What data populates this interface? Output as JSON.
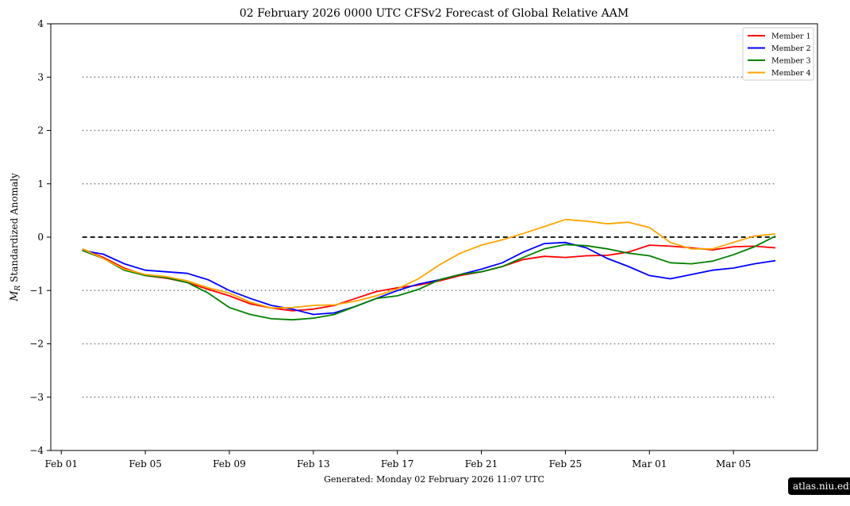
{
  "chart_data": {
    "type": "line",
    "title": "02  February  2026 0000 UTC   CFSv2 Forecast of Global Relative AAM",
    "xlabel": "",
    "ylabel": "Standardized Anomaly",
    "ylabel_symbol": "M",
    "ylabel_subscript": "R",
    "footer": "Generated: Monday  02  February  2026  11:07 UTC",
    "ylim": [
      -4,
      4
    ],
    "yticks": [
      -4,
      -3,
      -2,
      -1,
      0,
      1,
      2,
      3,
      4
    ],
    "ytick_labels": [
      "−4",
      "−3",
      "−2",
      "−1",
      "0",
      "1",
      "2",
      "3",
      "4"
    ],
    "xticks": [
      "2026-02-01",
      "2026-02-05",
      "2026-02-09",
      "2026-02-13",
      "2026-02-17",
      "2026-02-21",
      "2026-02-25",
      "2026-03-01",
      "2026-03-05"
    ],
    "xtick_labels": [
      "Feb 01",
      "Feb 05",
      "Feb 09",
      "Feb 13",
      "Feb 17",
      "Feb 21",
      "Feb 25",
      "Mar 01",
      "Mar 05"
    ],
    "xlim": [
      "2026-01-31T12:00",
      "2026-03-09T00:00"
    ],
    "reference_lines": {
      "zero": {
        "value": 0,
        "style": "dashed",
        "color": "#000000"
      },
      "dotted": {
        "values": [
          3,
          2,
          1,
          -1,
          -2,
          -3
        ],
        "style": "dotted",
        "color": "#808080",
        "from": "2026-02-02T00:00",
        "to": "2026-03-07T00:00"
      }
    },
    "legend_position": "top-right",
    "grid": false,
    "series": [
      {
        "name": "Member 1",
        "color": "#ff0000",
        "x": [
          "2026-02-02T00:00",
          "2026-02-03T00:00",
          "2026-02-04T00:00",
          "2026-02-05T00:00",
          "2026-02-06T00:00",
          "2026-02-07T00:00",
          "2026-02-08T00:00",
          "2026-02-09T00:00",
          "2026-02-10T00:00",
          "2026-02-11T00:00",
          "2026-02-12T00:00",
          "2026-02-13T00:00",
          "2026-02-14T00:00",
          "2026-02-15T00:00",
          "2026-02-16T00:00",
          "2026-02-17T00:00",
          "2026-02-18T00:00",
          "2026-02-19T00:00",
          "2026-02-20T00:00",
          "2026-02-21T00:00",
          "2026-02-22T00:00",
          "2026-02-23T00:00",
          "2026-02-24T00:00",
          "2026-02-25T00:00",
          "2026-02-26T00:00",
          "2026-02-27T00:00",
          "2026-02-28T00:00",
          "2026-03-01T00:00",
          "2026-03-02T00:00",
          "2026-03-03T00:00",
          "2026-03-04T00:00",
          "2026-03-05T00:00",
          "2026-03-06T00:00",
          "2026-03-07T00:00"
        ],
        "values": [
          -0.22,
          -0.38,
          -0.58,
          -0.72,
          -0.77,
          -0.85,
          -0.98,
          -1.1,
          -1.25,
          -1.33,
          -1.38,
          -1.35,
          -1.28,
          -1.15,
          -1.02,
          -0.95,
          -0.9,
          -0.82,
          -0.72,
          -0.65,
          -0.55,
          -0.42,
          -0.36,
          -0.38,
          -0.35,
          -0.34,
          -0.28,
          -0.15,
          -0.17,
          -0.2,
          -0.24,
          -0.18,
          -0.17,
          -0.2
        ]
      },
      {
        "name": "Member 2",
        "color": "#0000ff",
        "x": [
          "2026-02-02T00:00",
          "2026-02-03T00:00",
          "2026-02-04T00:00",
          "2026-02-05T00:00",
          "2026-02-06T00:00",
          "2026-02-07T00:00",
          "2026-02-08T00:00",
          "2026-02-09T00:00",
          "2026-02-10T00:00",
          "2026-02-11T00:00",
          "2026-02-12T00:00",
          "2026-02-13T00:00",
          "2026-02-14T00:00",
          "2026-02-15T00:00",
          "2026-02-16T00:00",
          "2026-02-17T00:00",
          "2026-02-18T00:00",
          "2026-02-19T00:00",
          "2026-02-20T00:00",
          "2026-02-21T00:00",
          "2026-02-22T00:00",
          "2026-02-23T00:00",
          "2026-02-24T00:00",
          "2026-02-25T00:00",
          "2026-02-26T00:00",
          "2026-02-27T00:00",
          "2026-02-28T00:00",
          "2026-03-01T00:00",
          "2026-03-02T00:00",
          "2026-03-03T00:00",
          "2026-03-04T00:00",
          "2026-03-05T00:00",
          "2026-03-06T00:00",
          "2026-03-07T00:00"
        ],
        "values": [
          -0.25,
          -0.32,
          -0.5,
          -0.62,
          -0.65,
          -0.68,
          -0.8,
          -1.0,
          -1.15,
          -1.28,
          -1.35,
          -1.45,
          -1.42,
          -1.3,
          -1.15,
          -1.0,
          -0.88,
          -0.8,
          -0.7,
          -0.6,
          -0.48,
          -0.28,
          -0.12,
          -0.1,
          -0.2,
          -0.4,
          -0.55,
          -0.72,
          -0.78,
          -0.7,
          -0.62,
          -0.58,
          -0.5,
          -0.44
        ]
      },
      {
        "name": "Member 3",
        "color": "#008000",
        "x": [
          "2026-02-02T00:00",
          "2026-02-03T00:00",
          "2026-02-04T00:00",
          "2026-02-05T00:00",
          "2026-02-06T00:00",
          "2026-02-07T00:00",
          "2026-02-08T00:00",
          "2026-02-09T00:00",
          "2026-02-10T00:00",
          "2026-02-11T00:00",
          "2026-02-12T00:00",
          "2026-02-13T00:00",
          "2026-02-14T00:00",
          "2026-02-15T00:00",
          "2026-02-16T00:00",
          "2026-02-17T00:00",
          "2026-02-18T00:00",
          "2026-02-19T00:00",
          "2026-02-20T00:00",
          "2026-02-21T00:00",
          "2026-02-22T00:00",
          "2026-02-23T00:00",
          "2026-02-24T00:00",
          "2026-02-25T00:00",
          "2026-02-26T00:00",
          "2026-02-27T00:00",
          "2026-02-28T00:00",
          "2026-03-01T00:00",
          "2026-03-02T00:00",
          "2026-03-03T00:00",
          "2026-03-04T00:00",
          "2026-03-05T00:00",
          "2026-03-06T00:00",
          "2026-03-07T00:00"
        ],
        "values": [
          -0.25,
          -0.4,
          -0.62,
          -0.72,
          -0.76,
          -0.85,
          -1.05,
          -1.32,
          -1.45,
          -1.53,
          -1.55,
          -1.52,
          -1.45,
          -1.3,
          -1.15,
          -1.1,
          -0.98,
          -0.8,
          -0.7,
          -0.65,
          -0.55,
          -0.38,
          -0.22,
          -0.14,
          -0.16,
          -0.22,
          -0.3,
          -0.35,
          -0.48,
          -0.5,
          -0.45,
          -0.33,
          -0.18,
          0.02
        ]
      },
      {
        "name": "Member 4",
        "color": "#ffa500",
        "x": [
          "2026-02-02T00:00",
          "2026-02-03T00:00",
          "2026-02-04T00:00",
          "2026-02-05T00:00",
          "2026-02-06T00:00",
          "2026-02-07T00:00",
          "2026-02-08T00:00",
          "2026-02-09T00:00",
          "2026-02-10T00:00",
          "2026-02-11T00:00",
          "2026-02-12T00:00",
          "2026-02-13T00:00",
          "2026-02-14T00:00",
          "2026-02-15T00:00",
          "2026-02-16T00:00",
          "2026-02-17T00:00",
          "2026-02-18T00:00",
          "2026-02-19T00:00",
          "2026-02-20T00:00",
          "2026-02-21T00:00",
          "2026-02-22T00:00",
          "2026-02-23T00:00",
          "2026-02-24T00:00",
          "2026-02-25T00:00",
          "2026-02-26T00:00",
          "2026-02-27T00:00",
          "2026-02-28T00:00",
          "2026-03-01T00:00",
          "2026-03-02T00:00",
          "2026-03-03T00:00",
          "2026-03-04T00:00",
          "2026-03-05T00:00",
          "2026-03-06T00:00",
          "2026-03-07T00:00"
        ],
        "values": [
          -0.22,
          -0.4,
          -0.6,
          -0.7,
          -0.74,
          -0.82,
          -0.95,
          -1.05,
          -1.22,
          -1.33,
          -1.32,
          -1.28,
          -1.27,
          -1.2,
          -1.1,
          -0.97,
          -0.78,
          -0.52,
          -0.3,
          -0.15,
          -0.05,
          0.07,
          0.2,
          0.33,
          0.3,
          0.25,
          0.28,
          0.18,
          -0.1,
          -0.22,
          -0.22,
          -0.1,
          0.02,
          0.06
        ]
      }
    ]
  },
  "watermark": "atlas.niu.edu"
}
